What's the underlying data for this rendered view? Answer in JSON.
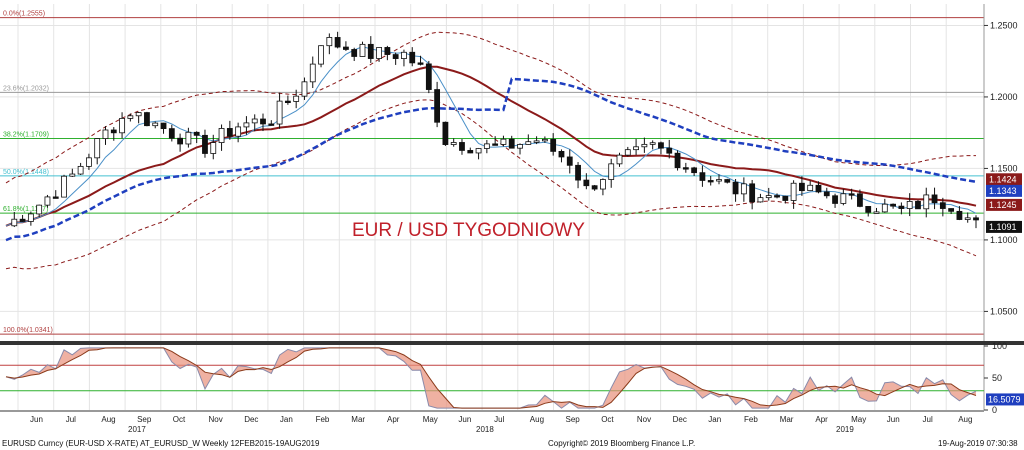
{
  "chart_data": {
    "type": "candlestick",
    "title": "EUR / USD TYGODNIOWY",
    "ylim": [
      1.03,
      1.265
    ],
    "y_ticks": [
      "1.2500",
      "1.2000",
      "1.1500",
      "1.1000",
      "1.0500"
    ],
    "y_tick_values": [
      1.25,
      1.2,
      1.15,
      1.1,
      1.05
    ],
    "x_labels": [
      "Jun",
      "Jul",
      "Aug",
      "Sep",
      "Oct",
      "Nov",
      "Dec",
      "Jan",
      "Feb",
      "Mar",
      "Apr",
      "May",
      "Jun",
      "Jul",
      "Aug",
      "Sep",
      "Oct",
      "Nov",
      "Dec",
      "Jan",
      "Feb",
      "Mar",
      "Apr",
      "May",
      "Jun",
      "Jul",
      "Aug"
    ],
    "years": [
      "2017",
      "2018",
      "2019"
    ],
    "fib_levels": [
      {
        "label": "0.0%(1.2555)",
        "value": 1.2555,
        "color": "#b04040"
      },
      {
        "label": "23.6%(1.2032)",
        "value": 1.2032,
        "color": "#999999"
      },
      {
        "label": "38.2%(1.1709)",
        "value": 1.1709,
        "color": "#2fb02f"
      },
      {
        "label": "50.0%(1.1448)",
        "value": 1.1448,
        "color": "#44c0d0"
      },
      {
        "label": "61.8%(1.1187)",
        "value": 1.1187,
        "color": "#2fb02f"
      },
      {
        "label": "100.0%(1.0341)",
        "value": 1.0341,
        "color": "#b04040"
      }
    ],
    "price_tags": [
      {
        "label": "1.1424",
        "value": 1.1424,
        "color": "#8b1a1a"
      },
      {
        "label": "1.1343",
        "value": 1.1343,
        "color": "#1f3fbf"
      },
      {
        "label": "1.1245",
        "value": 1.1245,
        "color": "#8b1a1a"
      },
      {
        "label": "1.1091",
        "value": 1.1091,
        "color": "#111111"
      }
    ],
    "title_label": "EUR / USD TYGODNIOWY",
    "osc_ylim": [
      0,
      100
    ],
    "osc_ticks": [
      "100",
      "50",
      "0"
    ],
    "osc_tick_values": [
      100,
      50,
      0
    ],
    "osc_tag": "16.5079",
    "osc_tag_value": 16.5079,
    "osc_levels": [
      70,
      30
    ],
    "colors": {
      "ma_red": "#8b1a1a",
      "ma_blue": "#1f3fbf",
      "ma_light": "#4a90c8",
      "band": "#8b1a1a",
      "up": "#ffffff",
      "down": "#111111",
      "osc_fill": "#e8907a",
      "osc_fill2": "#b0b0b0"
    }
  },
  "footer": {
    "left": "EURUSD Curncy (EUR-USD X-RATE) AT_EURUSD_W  Weekly 12FEB2015-19AUG2019",
    "center": "Copyright© 2019 Bloomberg Finance L.P.",
    "right": "19-Aug-2019 07:30:38"
  }
}
